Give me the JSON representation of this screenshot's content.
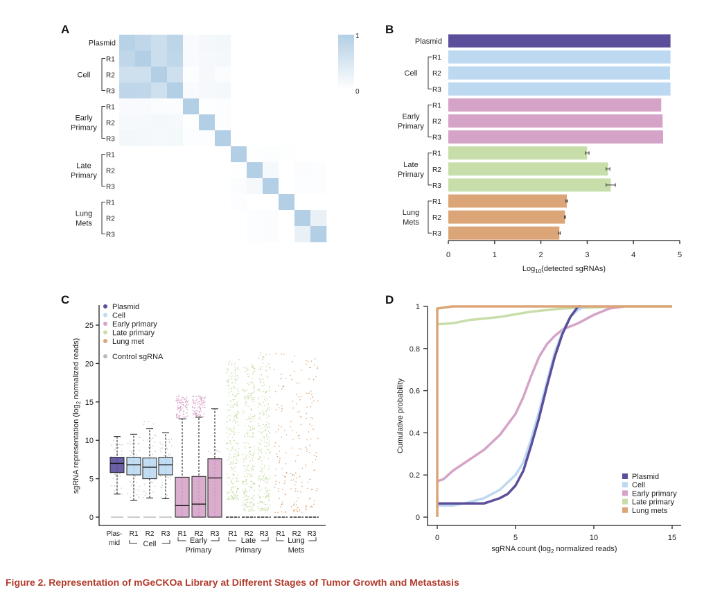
{
  "caption": "Figure 2.  Representation of mGeCKOa Library at Different Stages of Tumor Growth and Metastasis",
  "colors": {
    "plasmid": "#5b4f9c",
    "cell": "#bcd9f1",
    "early": "#d6a3c8",
    "late": "#c8deaa",
    "lung": "#dca577",
    "heat_max": "#b3cfe5",
    "control": "#bbbbbb"
  },
  "chart_data": [
    {
      "panel": "A",
      "type": "heatmap",
      "row_labels": [
        "Plasmid",
        "R1",
        "R2",
        "R3",
        "R1",
        "R2",
        "R3",
        "R1",
        "R2",
        "R3",
        "R1",
        "R2",
        "R3"
      ],
      "groups": [
        {
          "name": "Cell",
          "lines": [
            "Cell"
          ]
        },
        {
          "name": "Early Primary",
          "lines": [
            "Early",
            "Primary"
          ]
        },
        {
          "name": "Late Primary",
          "lines": [
            "Late",
            "Primary"
          ]
        },
        {
          "name": "Lung Mets",
          "lines": [
            "Lung",
            "Mets"
          ]
        }
      ],
      "colorbar": {
        "max_label": "1",
        "min_label": "0"
      },
      "values": [
        [
          0.8,
          0.7,
          0.58,
          0.75,
          0.08,
          0.12,
          0.15,
          0,
          0,
          0,
          0,
          0,
          0
        ],
        [
          0.7,
          0.85,
          0.58,
          0.7,
          0.08,
          0.1,
          0.12,
          0,
          0,
          0,
          0,
          0,
          0
        ],
        [
          0.55,
          0.55,
          0.85,
          0.55,
          0.04,
          0.1,
          0.06,
          0,
          0,
          0,
          0,
          0,
          0
        ],
        [
          0.72,
          0.7,
          0.55,
          0.85,
          0.08,
          0.1,
          0.13,
          0,
          0,
          0,
          0,
          0,
          0
        ],
        [
          0.08,
          0.08,
          0.06,
          0.06,
          0.85,
          0.02,
          0.04,
          0,
          0,
          0,
          0,
          0,
          0
        ],
        [
          0.1,
          0.1,
          0.12,
          0.1,
          0.02,
          0.85,
          0.04,
          0,
          0,
          0,
          0,
          0,
          0
        ],
        [
          0.15,
          0.12,
          0.1,
          0.13,
          0.03,
          0.04,
          0.85,
          0,
          0,
          0,
          0,
          0,
          0
        ],
        [
          0,
          0,
          0,
          0,
          0,
          0,
          0,
          0.85,
          0.02,
          0.04,
          0.02,
          0,
          0
        ],
        [
          0,
          0,
          0,
          0,
          0,
          0,
          0,
          0.02,
          0.85,
          0.1,
          0,
          0.05,
          0.04
        ],
        [
          0,
          0,
          0,
          0,
          0,
          0,
          0,
          0.05,
          0.1,
          0.85,
          0,
          0.04,
          0.04
        ],
        [
          0,
          0,
          0,
          0,
          0,
          0,
          0,
          0.03,
          0,
          0,
          0.85,
          0,
          0
        ],
        [
          0,
          0,
          0,
          0,
          0,
          0,
          0,
          0,
          0.04,
          0.05,
          0,
          0.85,
          0.25
        ],
        [
          0,
          0,
          0,
          0,
          0,
          0,
          0,
          0,
          0.04,
          0.06,
          0,
          0.25,
          0.85
        ]
      ]
    },
    {
      "panel": "B",
      "type": "bar",
      "orientation": "horizontal",
      "xlabel": "Log",
      "xlabel_sub": "10",
      "xlabel_rest": "(detected sgRNAs)",
      "xlim": [
        0,
        5
      ],
      "xticks": [
        "0",
        "1",
        "2",
        "3",
        "4",
        "5"
      ],
      "row_labels": [
        "Plasmid",
        "R1",
        "R2",
        "R3",
        "R1",
        "R2",
        "R3",
        "R1",
        "R2",
        "R3",
        "R1",
        "R2",
        "R3"
      ],
      "groups": [
        {
          "name": "Cell",
          "lines": [
            "Cell"
          ]
        },
        {
          "name": "Early Primary",
          "lines": [
            "Early",
            "Primary"
          ]
        },
        {
          "name": "Late Primary",
          "lines": [
            "Late",
            "Primary"
          ]
        },
        {
          "name": "Lung Mets",
          "lines": [
            "Lung",
            "Mets"
          ]
        }
      ],
      "series_color_keys": [
        "plasmid",
        "cell",
        "cell",
        "cell",
        "early",
        "early",
        "early",
        "late",
        "late",
        "late",
        "lung",
        "lung",
        "lung"
      ],
      "values": [
        4.8,
        4.8,
        4.79,
        4.8,
        4.6,
        4.63,
        4.64,
        3.0,
        3.45,
        3.51,
        2.56,
        2.52,
        2.4
      ],
      "errors": [
        0,
        0,
        0,
        0,
        0,
        0,
        0,
        0.04,
        0.04,
        0.1,
        0.02,
        0.01,
        0.02
      ]
    },
    {
      "panel": "C",
      "type": "box",
      "ylabel": "sgRNA representation  (log",
      "ylabel_sub": "2",
      "ylabel_rest": " normalized reads)",
      "ylim": [
        0,
        27
      ],
      "yticks": [
        "0",
        "5",
        "10",
        "15",
        "20",
        "25"
      ],
      "legend": [
        {
          "label": "Plasmid",
          "color_key": "plasmid"
        },
        {
          "label": "Cell",
          "color_key": "cell"
        },
        {
          "label": "Early primary",
          "color_key": "early"
        },
        {
          "label": "Late primary",
          "color_key": "late"
        },
        {
          "label": "Lung met",
          "color_key": "lung"
        },
        {
          "label": "Control sgRNA",
          "color_key": "control"
        }
      ],
      "category_labels": [
        [
          "Plas-",
          "mid"
        ],
        [
          "R1"
        ],
        [
          "R2"
        ],
        [
          "R3"
        ],
        [
          "R1"
        ],
        [
          "R2"
        ],
        [
          "R3"
        ],
        [
          "R1"
        ],
        [
          "R2"
        ],
        [
          "R3"
        ],
        [
          "R1"
        ],
        [
          "R2"
        ],
        [
          "R3"
        ]
      ],
      "groups": [
        {
          "name": "Cell",
          "lines": [
            "Cell"
          ]
        },
        {
          "name": "Early Primary",
          "lines": [
            "Early",
            "Primary"
          ]
        },
        {
          "name": "Late Primary",
          "lines": [
            "Late",
            "Primary"
          ]
        },
        {
          "name": "Lung Mets",
          "lines": [
            "Lung",
            "Mets"
          ]
        }
      ],
      "color_keys": [
        "plasmid",
        "cell",
        "cell",
        "cell",
        "early",
        "early",
        "early",
        "late",
        "late",
        "late",
        "lung",
        "lung",
        "lung"
      ],
      "boxes": [
        {
          "whisker_low": 3.0,
          "q1": 5.8,
          "median": 7.0,
          "q3": 7.8,
          "whisker_high": 10.5,
          "points_range": [
            3,
            10
          ]
        },
        {
          "whisker_low": 2.2,
          "q1": 5.5,
          "median": 6.8,
          "q3": 7.8,
          "whisker_high": 10.8,
          "points_range": [
            2.5,
            10.5
          ]
        },
        {
          "whisker_low": 2.5,
          "q1": 5.0,
          "median": 6.5,
          "q3": 7.7,
          "whisker_high": 11.5,
          "points_range": [
            2.5,
            12.5
          ]
        },
        {
          "whisker_low": 2.4,
          "q1": 5.5,
          "median": 6.8,
          "q3": 7.8,
          "whisker_high": 11.0,
          "points_range": [
            2.5,
            10.5
          ]
        },
        {
          "whisker_low": 0,
          "q1": 0,
          "median": 1.5,
          "q3": 5.2,
          "whisker_high": 12.8,
          "points_range": [
            12.8,
            15.8
          ]
        },
        {
          "whisker_low": 0,
          "q1": 0,
          "median": 1.7,
          "q3": 5.3,
          "whisker_high": 13.0,
          "points_range": [
            13,
            15.8
          ]
        },
        {
          "whisker_low": 0,
          "q1": 0,
          "median": 5.1,
          "q3": 7.6,
          "whisker_high": 14.1,
          "points_range": [
            3,
            9
          ]
        },
        {
          "whisker_low": 0,
          "q1": 0,
          "median": 0,
          "q3": 0,
          "whisker_high": 0,
          "points_range": [
            2.3,
            20.5
          ]
        },
        {
          "whisker_low": 0,
          "q1": 0,
          "median": 0,
          "q3": 0,
          "whisker_high": 0,
          "points_range": [
            0.8,
            20
          ]
        },
        {
          "whisker_low": 0,
          "q1": 0,
          "median": 0,
          "q3": 0,
          "whisker_high": 0,
          "points_range": [
            0.8,
            21.5
          ]
        },
        {
          "whisker_low": 0,
          "q1": 0,
          "median": 0,
          "q3": 0,
          "whisker_high": 0,
          "points_range": [
            0.6,
            21.5
          ]
        },
        {
          "whisker_low": 0,
          "q1": 0,
          "median": 0,
          "q3": 0,
          "whisker_high": 0,
          "points_range": [
            0.6,
            21
          ]
        },
        {
          "whisker_low": 0,
          "q1": 0,
          "median": 0,
          "q3": 0,
          "whisker_high": 0,
          "points_range": [
            0.9,
            21.5
          ]
        }
      ]
    },
    {
      "panel": "D",
      "type": "line",
      "xlabel": "sgRNA count (log",
      "xlabel_sub": "2",
      "xlabel_rest": " normalized reads)",
      "ylabel": "Cumulative probability",
      "xlim": [
        0,
        15
      ],
      "ylim": [
        0,
        1
      ],
      "xticks": [
        "0",
        "5",
        "10",
        "15"
      ],
      "yticks": [
        "0",
        "0.2",
        "0.4",
        "0.6",
        "0.8",
        "1"
      ],
      "legend_position": "bottom-right",
      "series": [
        {
          "name": "Plasmid",
          "color_key": "plasmid",
          "points": [
            [
              0,
              0.065
            ],
            [
              3,
              0.065
            ],
            [
              4,
              0.09
            ],
            [
              4.5,
              0.11
            ],
            [
              5,
              0.15
            ],
            [
              5.5,
              0.22
            ],
            [
              6,
              0.34
            ],
            [
              6.5,
              0.47
            ],
            [
              7,
              0.62
            ],
            [
              7.5,
              0.76
            ],
            [
              8,
              0.87
            ],
            [
              8.5,
              0.95
            ],
            [
              9,
              1.0
            ],
            [
              9.2,
              1.0
            ]
          ]
        },
        {
          "name": "Cell",
          "color_key": "cell",
          "points": [
            [
              0,
              0.055
            ],
            [
              1,
              0.055
            ],
            [
              2,
              0.07
            ],
            [
              3,
              0.09
            ],
            [
              4,
              0.13
            ],
            [
              5,
              0.2
            ],
            [
              5.5,
              0.26
            ],
            [
              6,
              0.37
            ],
            [
              6.5,
              0.5
            ],
            [
              7,
              0.64
            ],
            [
              7.5,
              0.78
            ],
            [
              8,
              0.88
            ],
            [
              8.5,
              0.95
            ],
            [
              9,
              0.985
            ],
            [
              9.5,
              1.0
            ]
          ]
        },
        {
          "name": "Early primary",
          "color_key": "early",
          "points": [
            [
              0,
              0.17
            ],
            [
              0.4,
              0.18
            ],
            [
              1,
              0.22
            ],
            [
              2,
              0.27
            ],
            [
              3,
              0.32
            ],
            [
              4,
              0.39
            ],
            [
              5,
              0.49
            ],
            [
              5.5,
              0.57
            ],
            [
              6,
              0.67
            ],
            [
              6.5,
              0.76
            ],
            [
              7,
              0.82
            ],
            [
              7.5,
              0.86
            ],
            [
              8,
              0.89
            ],
            [
              9,
              0.92
            ],
            [
              10,
              0.96
            ],
            [
              11,
              0.99
            ],
            [
              12,
              1.0
            ]
          ]
        },
        {
          "name": "Late primary",
          "color_key": "late",
          "points": [
            [
              0,
              0.915
            ],
            [
              1,
              0.92
            ],
            [
              2,
              0.935
            ],
            [
              4,
              0.95
            ],
            [
              6,
              0.975
            ],
            [
              8,
              0.99
            ],
            [
              10,
              0.995
            ],
            [
              12,
              1.0
            ],
            [
              15,
              1.0
            ]
          ]
        },
        {
          "name": "Lung mets",
          "color_key": "lung",
          "points": [
            [
              0,
              0
            ],
            [
              0,
              0.99
            ],
            [
              1,
              1.0
            ],
            [
              15,
              1.0
            ]
          ]
        }
      ]
    }
  ],
  "panels": {
    "a": "A",
    "b": "B",
    "c": "C",
    "d": "D"
  }
}
